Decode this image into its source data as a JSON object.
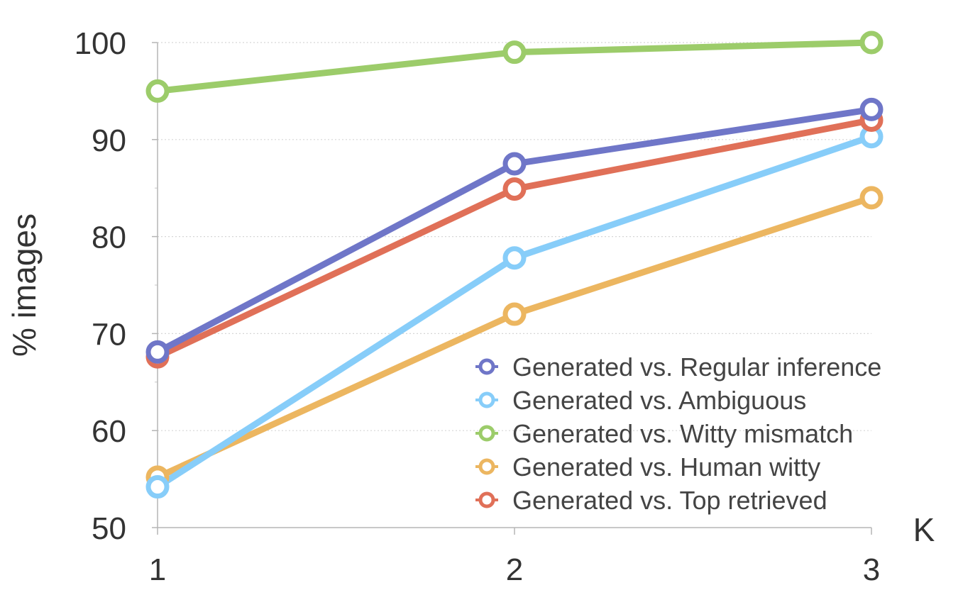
{
  "chart_data": {
    "type": "line",
    "x": [
      1,
      2,
      3
    ],
    "xlabel": "K",
    "ylabel": "% images",
    "ylim": [
      50,
      100
    ],
    "yticks": [
      50,
      60,
      70,
      80,
      90,
      100
    ],
    "xticks": [
      "1",
      "2",
      "3"
    ],
    "grid": true,
    "legend_position": "bottom-right",
    "series": [
      {
        "name": "Generated vs. Witty mismatch",
        "color": "#9ccc6a",
        "values": [
          95,
          99,
          100
        ]
      },
      {
        "name": "Generated vs. Human witty",
        "color": "#ecb660",
        "values": [
          55.2,
          72,
          84
        ]
      },
      {
        "name": "Generated vs. Ambiguous",
        "color": "#87cdf9",
        "values": [
          54.2,
          77.8,
          90.3
        ]
      },
      {
        "name": "Generated vs. Top retrieved",
        "color": "#e07058",
        "values": [
          67.6,
          84.9,
          92
        ]
      },
      {
        "name": "Generated vs. Regular inference",
        "color": "#6f76c8",
        "values": [
          68.1,
          87.5,
          93.1
        ]
      }
    ],
    "legend_order": [
      "Generated vs. Regular inference",
      "Generated vs. Ambiguous",
      "Generated vs. Witty mismatch",
      "Generated vs. Human witty",
      "Generated vs. Top retrieved"
    ]
  }
}
